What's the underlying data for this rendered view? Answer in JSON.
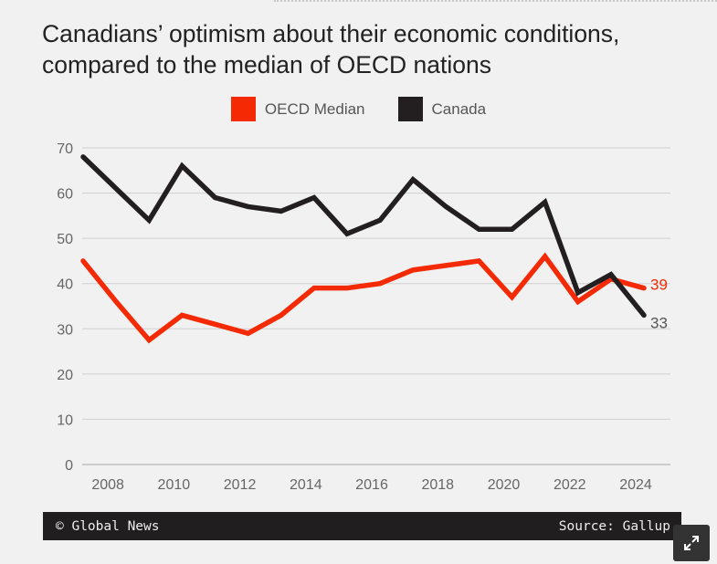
{
  "chart_data": {
    "type": "line",
    "title": "Canadians’ optimism about their economic conditions, compared to the median of OECD nations",
    "x": [
      2007,
      2008,
      2009,
      2010,
      2011,
      2012,
      2013,
      2014,
      2015,
      2016,
      2017,
      2018,
      2019,
      2020,
      2021,
      2022,
      2023,
      2024
    ],
    "x_tick_labels": [
      "2008",
      "2010",
      "2012",
      "2014",
      "2016",
      "2018",
      "2020",
      "2022",
      "2024"
    ],
    "y_tick_labels": [
      "0",
      "10",
      "20",
      "30",
      "40",
      "50",
      "60",
      "70"
    ],
    "ylim": [
      0,
      70
    ],
    "grid": true,
    "legend_placement": "top-center",
    "series": [
      {
        "name": "OECD Median",
        "color": "#f42a05",
        "values": [
          45,
          36,
          27.5,
          33,
          31,
          29,
          33,
          39,
          39,
          40,
          43,
          44,
          45,
          37,
          46,
          36,
          41,
          39
        ],
        "end_label": "39"
      },
      {
        "name": "Canada",
        "color": "#231f20",
        "values": [
          68,
          61,
          54,
          66,
          59,
          57,
          56,
          59,
          51,
          54,
          63,
          57,
          52,
          52,
          58,
          38,
          42,
          33
        ],
        "end_label": "33"
      }
    ]
  },
  "footer": {
    "credit": "© Global News",
    "source": "Source: Gallup"
  },
  "icons": {
    "expand": "expand-icon"
  }
}
